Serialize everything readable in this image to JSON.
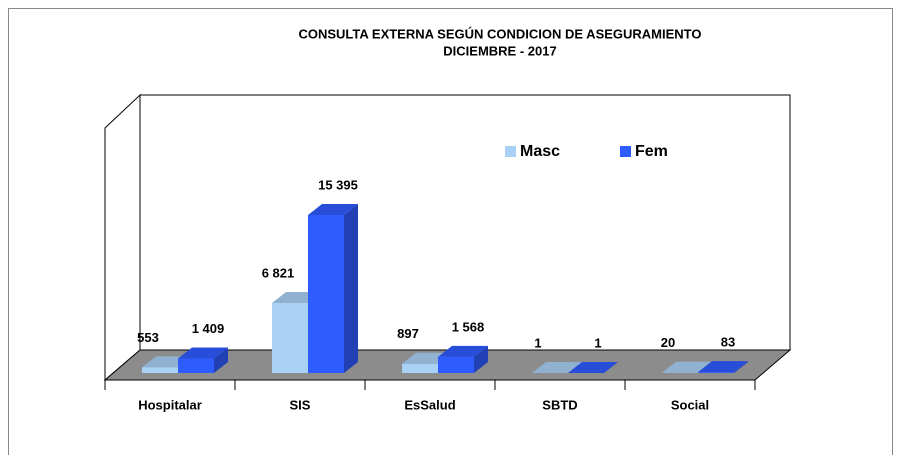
{
  "chart_data": {
    "type": "bar3d",
    "title": "CONSULTA EXTERNA SEGÚN CONDICION  DE ASEGURAMIENTO",
    "subtitle": "DICIEMBRE  - 2017",
    "categories": [
      "Hospitalar",
      "SIS",
      "EsSalud",
      "SBTD",
      "Social"
    ],
    "series": [
      {
        "name": "Masc",
        "color": "#a9d0f5",
        "values": [
          553,
          6821,
          897,
          1,
          20
        ],
        "value_labels": [
          "553",
          "6 821",
          "897",
          "1",
          "20"
        ]
      },
      {
        "name": "Fem",
        "color": "#2f5cff",
        "values": [
          1409,
          15395,
          1568,
          1,
          83
        ],
        "value_labels": [
          "1 409",
          "15 395",
          "1 568",
          "1",
          "83"
        ]
      }
    ],
    "legend": "top-right"
  }
}
